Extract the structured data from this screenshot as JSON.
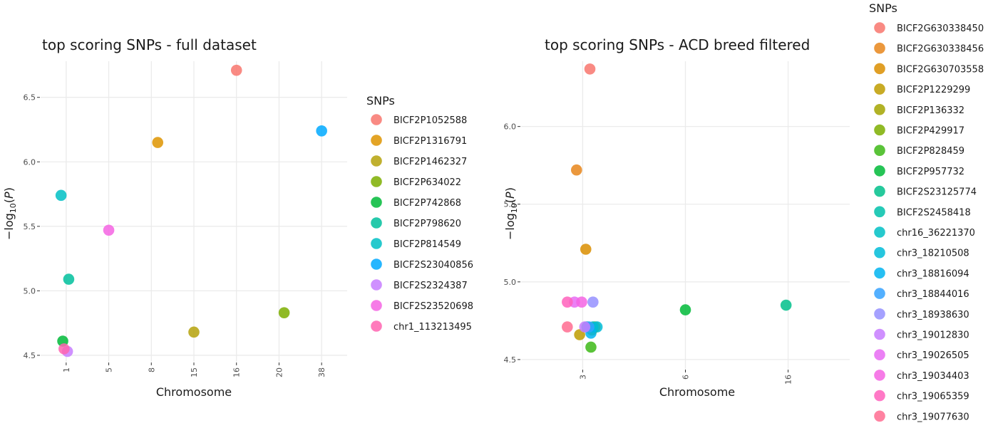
{
  "chart_data": [
    {
      "type": "scatter",
      "title": "top scoring SNPs - full dataset",
      "xlabel": "Chromosome",
      "ylabel": "-log10(P)",
      "x_categories": [
        "1",
        "5",
        "8",
        "15",
        "16",
        "20",
        "38"
      ],
      "ylim": [
        4.45,
        6.78
      ],
      "y_ticks": [
        "4.5",
        "5.0",
        "5.5",
        "6.0",
        "6.5"
      ],
      "legend_title": "SNPs",
      "legend_position": "right",
      "series": [
        {
          "name": "BICF2P1052588",
          "color": "#F8766D",
          "x": "16",
          "y": 6.71,
          "offset": 0.0
        },
        {
          "name": "BICF2P1316791",
          "color": "#DE9400",
          "x": "8",
          "y": 6.15,
          "offset": 0.15
        },
        {
          "name": "BICF2P1462327",
          "color": "#B5A20A",
          "x": "15",
          "y": 4.68,
          "offset": 0.0
        },
        {
          "name": "BICF2P634022",
          "color": "#7CAE00",
          "x": "20",
          "y": 4.83,
          "offset": 0.12
        },
        {
          "name": "BICF2P742868",
          "color": "#00BA38",
          "x": "1",
          "y": 4.61,
          "offset": -0.08
        },
        {
          "name": "BICF2P798620",
          "color": "#00C09C",
          "x": "1",
          "y": 5.09,
          "offset": 0.06
        },
        {
          "name": "BICF2P814549",
          "color": "#00BFC4",
          "x": "1",
          "y": 5.74,
          "offset": -0.12
        },
        {
          "name": "BICF2S23040856",
          "color": "#00A9FF",
          "x": "38",
          "y": 6.24,
          "offset": 0.0
        },
        {
          "name": "BICF2S2324387",
          "color": "#C77CFF",
          "x": "1",
          "y": 4.53,
          "offset": 0.03
        },
        {
          "name": "BICF2S23520698",
          "color": "#F564E3",
          "x": "5",
          "y": 5.47,
          "offset": 0.0
        },
        {
          "name": "chr1_113213495",
          "color": "#FF64B0",
          "x": "1",
          "y": 4.55,
          "offset": -0.05
        }
      ]
    },
    {
      "type": "scatter",
      "title": "top scoring SNPs - ACD breed filtered",
      "xlabel": "Chromosome",
      "ylabel": "-log10(P)",
      "x_categories": [
        "3",
        "6",
        "16"
      ],
      "ylim": [
        4.44,
        6.42
      ],
      "y_ticks": [
        "4.5",
        "5.0",
        "5.5",
        "6.0"
      ],
      "legend_title": "SNPs",
      "legend_position": "right",
      "series": [
        {
          "name": "BICF2G630338450",
          "color": "#F8766D",
          "x": "3",
          "y": 6.37,
          "offset": 0.07
        },
        {
          "name": "BICF2G630338456",
          "color": "#E7861B",
          "x": "3",
          "y": 5.72,
          "offset": -0.06
        },
        {
          "name": "BICF2G630703558",
          "color": "#DB8E00",
          "x": "3",
          "y": 5.21,
          "offset": 0.03
        },
        {
          "name": "BICF2P1229299",
          "color": "#BE9C00",
          "x": "3",
          "y": 4.66,
          "offset": -0.03
        },
        {
          "name": "BICF2P136332",
          "color": "#A3A500",
          "x": "3",
          "y": 4.71,
          "offset": 0.12
        },
        {
          "name": "BICF2P429917",
          "color": "#7CAE00",
          "x": "3",
          "y": 4.69,
          "offset": 0.09
        },
        {
          "name": "BICF2P828459",
          "color": "#3DB816",
          "x": "3",
          "y": 4.58,
          "offset": 0.08
        },
        {
          "name": "BICF2P957732",
          "color": "#00BA38",
          "x": "6",
          "y": 4.82,
          "offset": 0.0
        },
        {
          "name": "BICF2S23125774",
          "color": "#00C08B",
          "x": "16",
          "y": 4.85,
          "offset": -0.02
        },
        {
          "name": "BICF2S2458418",
          "color": "#00C1AA",
          "x": "3",
          "y": 4.71,
          "offset": 0.04
        },
        {
          "name": "chr16_36221370",
          "color": "#00BFC4",
          "x": "3",
          "y": 4.71,
          "offset": 0.1
        },
        {
          "name": "chr3_18210508",
          "color": "#00BCD8",
          "x": "3",
          "y": 4.71,
          "offset": 0.14
        },
        {
          "name": "chr3_18816094",
          "color": "#00B4F0",
          "x": "3",
          "y": 4.67,
          "offset": 0.08
        },
        {
          "name": "chr3_18844016",
          "color": "#35A2FF",
          "x": "3",
          "y": 4.71,
          "offset": 0.06
        },
        {
          "name": "chr3_18938630",
          "color": "#9590FF",
          "x": "3",
          "y": 4.87,
          "offset": 0.1
        },
        {
          "name": "chr3_19012830",
          "color": "#C77CFF",
          "x": "3",
          "y": 4.71,
          "offset": 0.02
        },
        {
          "name": "chr3_19026505",
          "color": "#E76BF3",
          "x": "3",
          "y": 4.87,
          "offset": -0.08
        },
        {
          "name": "chr3_19034403",
          "color": "#F564E3",
          "x": "3",
          "y": 4.87,
          "offset": -0.01
        },
        {
          "name": "chr3_19065359",
          "color": "#FF62BC",
          "x": "3",
          "y": 4.87,
          "offset": -0.15
        },
        {
          "name": "chr3_19077630",
          "color": "#FF6C91",
          "x": "3",
          "y": 4.71,
          "offset": -0.15
        }
      ]
    }
  ]
}
